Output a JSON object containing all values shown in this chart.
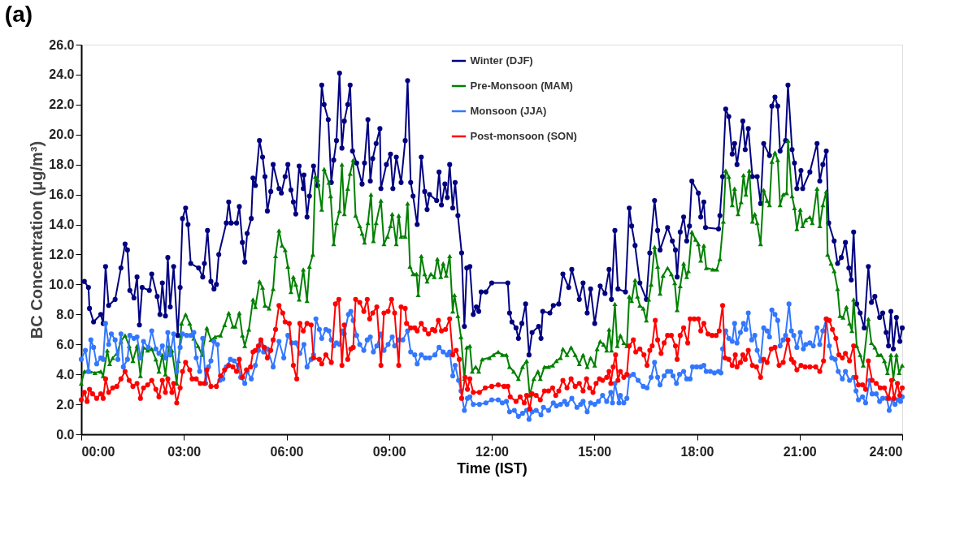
{
  "chart_data": {
    "type": "line",
    "title": "(a)",
    "xlabel": "Time (IST)",
    "ylabel": "BC Concentration (μg/m³)",
    "xlim": [
      0,
      24
    ],
    "xticks": [
      {
        "value": 0,
        "label": "00:00"
      },
      {
        "value": 3,
        "label": "03:00"
      },
      {
        "value": 6,
        "label": "06:00"
      },
      {
        "value": 9,
        "label": "09:00"
      },
      {
        "value": 12,
        "label": "12:00"
      },
      {
        "value": 15,
        "label": "15:00"
      },
      {
        "value": 18,
        "label": "18:00"
      },
      {
        "value": 21,
        "label": "21:00"
      },
      {
        "value": 24,
        "label": "24:00"
      }
    ],
    "ylim": [
      0,
      26
    ],
    "yticks": [
      {
        "value": 0,
        "label": "0.0"
      },
      {
        "value": 2,
        "label": "2.0"
      },
      {
        "value": 4,
        "label": "4.0"
      },
      {
        "value": 6,
        "label": "6.0"
      },
      {
        "value": 8,
        "label": "8.0"
      },
      {
        "value": 10,
        "label": "10.0"
      },
      {
        "value": 12,
        "label": "12.0"
      },
      {
        "value": 14,
        "label": "14.0"
      },
      {
        "value": 16,
        "label": "16.0"
      },
      {
        "value": 18,
        "label": "18.0"
      },
      {
        "value": 20,
        "label": "20.0"
      },
      {
        "value": 22,
        "label": "22.0"
      },
      {
        "value": 24,
        "label": "24.0"
      },
      {
        "value": 26,
        "label": "26.0"
      }
    ],
    "grid": false,
    "legend": "top",
    "line_style": "solid",
    "series": [
      {
        "name": "Winter (DJF)",
        "color": "#000080",
        "marker": "circle",
        "x": [
          0.09,
          0.21,
          0.24,
          0.36,
          0.57,
          0.64,
          0.71,
          0.8,
          0.99,
          1.16,
          1.28,
          1.35,
          1.42,
          1.54,
          1.63,
          1.7,
          1.78,
          1.99,
          2.06,
          2.22,
          2.3,
          2.37,
          2.46,
          2.53,
          2.6,
          2.7,
          2.82,
          2.89,
          2.96,
          3.05,
          3.12,
          3.2,
          3.43,
          3.55,
          3.6,
          3.69,
          3.79,
          3.88,
          3.95,
          4.02,
          4.24,
          4.31,
          4.38,
          4.54,
          4.62,
          4.71,
          4.78,
          4.85,
          4.97,
          5.02,
          5.09,
          5.21,
          5.3,
          5.37,
          5.44,
          5.54,
          5.61,
          5.78,
          5.85,
          5.96,
          6.04,
          6.13,
          6.2,
          6.27,
          6.37,
          6.49,
          6.51,
          6.6,
          6.67,
          6.79,
          6.91,
          7.03,
          7.1,
          7.22,
          7.31,
          7.38,
          7.46,
          7.55,
          7.62,
          7.69,
          7.79,
          7.86,
          7.93,
          8.05,
          8.21,
          8.28,
          8.38,
          8.45,
          8.52,
          8.62,
          8.73,
          8.76,
          8.92,
          9.04,
          9.11,
          9.21,
          9.35,
          9.47,
          9.54,
          9.63,
          9.7,
          9.82,
          9.94,
          10.04,
          10.11,
          10.18,
          10.39,
          10.46,
          10.53,
          10.63,
          10.7,
          10.77,
          10.86,
          10.93,
          11.01,
          11.12,
          11.2,
          11.27,
          11.36,
          11.46,
          11.55,
          11.62,
          11.69,
          11.83,
          12.0,
          12.47,
          12.52,
          12.59,
          12.71,
          12.78,
          12.88,
          12.99,
          13.09,
          13.18,
          13.37,
          13.44,
          13.49,
          13.7,
          13.8,
          13.96,
          14.08,
          14.25,
          14.34,
          14.56,
          14.67,
          14.79,
          14.89,
          15.01,
          15.17,
          15.31,
          15.43,
          15.5,
          15.6,
          15.69,
          15.91,
          16.02,
          16.09,
          16.19,
          16.33,
          16.52,
          16.62,
          16.76,
          16.85,
          16.92,
          17.14,
          17.28,
          17.37,
          17.42,
          17.51,
          17.61,
          17.7,
          17.78,
          17.85,
          18.04,
          18.11,
          18.2,
          18.25,
          18.63,
          18.67,
          18.75,
          18.84,
          18.93,
          19.03,
          19.1,
          19.17,
          19.34,
          19.41,
          19.5,
          19.62,
          19.76,
          19.86,
          19.95,
          20.12,
          20.19,
          20.28,
          20.36,
          20.43,
          20.59,
          20.66,
          20.78,
          20.85,
          20.92,
          21.04,
          21.09,
          21.3,
          21.51,
          21.59,
          21.68,
          21.78,
          21.85,
          22.01,
          22.11,
          22.22,
          22.34,
          22.44,
          22.51,
          22.58,
          22.67,
          22.77,
          22.89,
          23.01,
          23.1,
          23.2,
          23.34,
          23.43,
          23.53,
          23.6,
          23.67,
          23.74,
          23.83,
          23.93,
          24.0
        ],
        "values": [
          10.2,
          9.8,
          8.4,
          7.5,
          8.0,
          7.4,
          11.2,
          8.6,
          9.0,
          11.1,
          12.7,
          12.3,
          9.6,
          9.1,
          10.5,
          7.3,
          9.8,
          9.6,
          10.7,
          9.2,
          8.0,
          10.1,
          7.9,
          11.8,
          8.5,
          11.2,
          6.6,
          9.8,
          14.4,
          15.1,
          14.0,
          11.4,
          11.1,
          10.5,
          11.4,
          13.6,
          10.2,
          9.7,
          10.0,
          12.0,
          14.1,
          15.5,
          14.1,
          14.1,
          15.2,
          12.8,
          11.5,
          13.4,
          14.4,
          17.1,
          16.6,
          19.6,
          18.5,
          17.2,
          14.9,
          16.2,
          18.0,
          16.4,
          16.1,
          17.2,
          18.0,
          16.3,
          15.5,
          14.7,
          17.9,
          16.4,
          17.3,
          14.5,
          15.9,
          17.9,
          16.6,
          23.3,
          22.0,
          21.0,
          16.8,
          18.3,
          19.6,
          24.1,
          19.1,
          20.9,
          22.0,
          23.3,
          18.9,
          18.1,
          16.7,
          18.1,
          21.0,
          16.9,
          18.4,
          19.4,
          20.4,
          16.4,
          18.0,
          18.7,
          16.4,
          18.5,
          16.8,
          19.6,
          23.6,
          16.8,
          15.9,
          14.0,
          18.5,
          16.2,
          15.0,
          16.0,
          15.6,
          17.5,
          15.3,
          16.7,
          15.8,
          18.0,
          15.1,
          16.8,
          14.6,
          12.1,
          7.2,
          11.1,
          11.2,
          8.0,
          8.5,
          8.2,
          9.5,
          9.5,
          10.1,
          10.1,
          8.1,
          7.5,
          7.1,
          6.4,
          7.4,
          8.7,
          5.3,
          6.8,
          7.2,
          6.4,
          8.2,
          8.1,
          8.6,
          8.7,
          10.7,
          9.8,
          11.0,
          9.0,
          10.1,
          8.1,
          9.7,
          7.4,
          9.9,
          9.4,
          11.0,
          9.0,
          13.6,
          9.7,
          9.5,
          15.1,
          13.9,
          12.6,
          10.1,
          9.0,
          12.1,
          15.6,
          13.6,
          12.3,
          13.8,
          12.9,
          12.3,
          10.5,
          13.5,
          14.5,
          12.9,
          13.9,
          16.9,
          16.1,
          14.5,
          15.5,
          13.8,
          13.7,
          14.6,
          17.2,
          21.7,
          21.2,
          18.7,
          19.4,
          18.0,
          20.9,
          19.0,
          20.4,
          17.2,
          17.2,
          15.4,
          19.4,
          18.6,
          21.9,
          22.5,
          21.9,
          18.9,
          19.6,
          23.3,
          19.0,
          18.1,
          16.4,
          17.6,
          16.4,
          17.5,
          19.4,
          16.9,
          18.0,
          18.9,
          14.1,
          12.9,
          11.4,
          11.8,
          12.8,
          11.1,
          10.3,
          13.5,
          8.7,
          8.1,
          7.1,
          11.2,
          8.8,
          9.2,
          7.8,
          8.1,
          6.8,
          5.9,
          8.2,
          5.7,
          7.8,
          6.2,
          7.1
        ]
      },
      {
        "name": "Pre-Monsoon (MAM)",
        "color": "#008000",
        "marker": "triangle",
        "x": [
          0.0,
          0.09,
          0.24,
          0.4,
          0.57,
          0.64,
          0.76,
          0.83,
          0.92,
          1.04,
          1.16,
          1.28,
          1.4,
          1.51,
          1.63,
          1.73,
          1.82,
          1.94,
          2.06,
          2.18,
          2.27,
          2.37,
          2.46,
          2.56,
          2.65,
          2.79,
          2.84,
          2.93,
          3.05,
          3.17,
          3.29,
          3.41,
          3.53,
          3.67,
          3.79,
          3.91,
          4.07,
          4.19,
          4.31,
          4.43,
          4.5,
          4.62,
          4.71,
          4.78,
          4.9,
          5.02,
          5.09,
          5.21,
          5.3,
          5.37,
          5.49,
          5.61,
          5.68,
          5.78,
          5.87,
          5.96,
          6.04,
          6.13,
          6.2,
          6.27,
          6.37,
          6.49,
          6.6,
          6.67,
          6.77,
          6.84,
          6.91,
          7.03,
          7.1,
          7.24,
          7.29,
          7.38,
          7.46,
          7.55,
          7.62,
          7.69,
          7.79,
          7.86,
          7.95,
          8.02,
          8.14,
          8.21,
          8.28,
          8.38,
          8.47,
          8.54,
          8.62,
          8.76,
          8.85,
          8.95,
          9.04,
          9.09,
          9.21,
          9.28,
          9.35,
          9.47,
          9.54,
          9.61,
          9.7,
          9.8,
          9.85,
          9.94,
          10.04,
          10.11,
          10.22,
          10.32,
          10.41,
          10.51,
          10.58,
          10.67,
          10.77,
          10.86,
          10.91,
          11.01,
          11.1,
          11.2,
          11.27,
          11.36,
          11.43,
          11.53,
          11.62,
          11.72,
          11.93,
          12.05,
          12.19,
          12.31,
          12.43,
          12.52,
          12.64,
          12.78,
          12.9,
          13.02,
          13.11,
          13.23,
          13.35,
          13.42,
          13.54,
          13.66,
          13.78,
          13.89,
          14.01,
          14.08,
          14.2,
          14.32,
          14.44,
          14.56,
          14.67,
          14.79,
          14.89,
          15.01,
          15.08,
          15.17,
          15.27,
          15.36,
          15.43,
          15.5,
          15.6,
          15.67,
          15.76,
          15.86,
          15.95,
          16.02,
          16.09,
          16.19,
          16.26,
          16.33,
          16.43,
          16.52,
          16.59,
          16.66,
          16.76,
          16.85,
          16.92,
          17.01,
          17.14,
          17.25,
          17.35,
          17.42,
          17.51,
          17.61,
          17.7,
          17.75,
          17.85,
          17.96,
          18.04,
          18.11,
          18.2,
          18.27,
          18.46,
          18.58,
          18.67,
          18.77,
          18.84,
          18.93,
          19.03,
          19.1,
          19.2,
          19.29,
          19.36,
          19.43,
          19.53,
          19.62,
          19.69,
          19.76,
          19.86,
          19.95,
          20.05,
          20.12,
          20.19,
          20.28,
          20.36,
          20.43,
          20.52,
          20.62,
          20.66,
          20.78,
          20.85,
          20.92,
          21.02,
          21.09,
          21.18,
          21.3,
          21.37,
          21.51,
          21.59,
          21.68,
          21.78,
          21.82,
          21.92,
          22.01,
          22.11,
          22.18,
          22.27,
          22.37,
          22.46,
          22.53,
          22.58,
          22.67,
          22.77,
          22.86,
          23.01,
          23.1,
          23.2,
          23.29,
          23.38,
          23.48,
          23.57,
          23.67,
          23.74,
          23.83,
          23.91,
          24.0
        ],
        "values": [
          3.4,
          4.2,
          4.2,
          4.1,
          4.2,
          3.9,
          5.6,
          4.7,
          5.1,
          5.4,
          6.2,
          6.6,
          5.9,
          4.9,
          5.9,
          3.9,
          5.8,
          5.6,
          5.7,
          5.0,
          4.2,
          5.3,
          4.0,
          5.9,
          5.6,
          3.4,
          4.9,
          7.4,
          8.0,
          7.4,
          6.4,
          5.9,
          5.3,
          7.1,
          6.3,
          6.5,
          6.6,
          7.3,
          8.1,
          7.2,
          7.2,
          8.1,
          6.6,
          5.9,
          7.0,
          9.0,
          8.5,
          10.2,
          9.8,
          8.6,
          8.4,
          9.7,
          11.9,
          13.6,
          12.6,
          12.3,
          11.2,
          9.5,
          10.5,
          10.0,
          9.0,
          11.0,
          8.9,
          11.2,
          12.0,
          17.2,
          17.0,
          15.0,
          17.7,
          16.8,
          15.9,
          12.7,
          14.1,
          14.9,
          18.0,
          14.7,
          16.4,
          17.4,
          18.3,
          14.6,
          13.9,
          13.4,
          12.8,
          14.1,
          16.0,
          12.9,
          14.1,
          15.6,
          12.7,
          13.2,
          13.9,
          14.7,
          12.7,
          14.6,
          13.2,
          13.2,
          15.4,
          11.2,
          10.7,
          10.7,
          9.3,
          11.9,
          10.7,
          10.2,
          10.7,
          10.5,
          11.7,
          10.5,
          11.4,
          10.6,
          11.9,
          8.2,
          9.3,
          7.9,
          6.5,
          3.7,
          5.8,
          5.9,
          4.2,
          4.5,
          4.2,
          5.0,
          5.1,
          5.3,
          5.5,
          5.3,
          5.3,
          4.5,
          4.2,
          3.7,
          4.5,
          4.9,
          2.6,
          3.7,
          4.2,
          3.7,
          4.5,
          4.5,
          4.6,
          4.9,
          5.1,
          5.7,
          5.3,
          5.8,
          5.3,
          4.7,
          5.3,
          4.5,
          5.1,
          4.6,
          5.7,
          6.2,
          6.0,
          5.6,
          7.0,
          5.6,
          8.7,
          5.9,
          6.6,
          6.1,
          5.9,
          9.2,
          8.9,
          10.3,
          9.2,
          8.6,
          8.4,
          7.6,
          9.0,
          10.0,
          12.5,
          11.2,
          9.4,
          10.6,
          11.1,
          10.7,
          10.1,
          8.3,
          9.9,
          11.4,
          10.5,
          10.9,
          13.5,
          13.0,
          12.7,
          11.6,
          12.6,
          11.1,
          11.0,
          11.0,
          11.7,
          14.2,
          17.6,
          17.2,
          15.3,
          16.4,
          14.7,
          15.5,
          17.3,
          16.0,
          17.6,
          14.2,
          14.7,
          14.1,
          12.7,
          16.3,
          15.6,
          15.3,
          18.2,
          18.8,
          18.3,
          15.3,
          16.0,
          16.1,
          19.6,
          15.9,
          15.1,
          13.7,
          15.0,
          13.9,
          14.3,
          14.5,
          14.1,
          16.4,
          13.9,
          15.3,
          16.2,
          12.0,
          11.4,
          10.9,
          9.7,
          7.9,
          7.8,
          8.5,
          7.4,
          6.9,
          9.0,
          5.9,
          5.3,
          4.6,
          7.7,
          6.1,
          5.8,
          5.3,
          5.3,
          4.9,
          4.1,
          5.3,
          3.7,
          5.3,
          4.1,
          4.6
        ]
      },
      {
        "name": "Monsoon (JJA)",
        "color": "#3377ff",
        "marker": "circle",
        "x": [
          0.0,
          0.12,
          0.21,
          0.28,
          0.36,
          0.45,
          0.57,
          0.64,
          0.71,
          0.8,
          0.88,
          0.99,
          1.07,
          1.16,
          1.23,
          1.35,
          1.42,
          1.54,
          1.63,
          1.73,
          1.82,
          1.96,
          2.06,
          2.18,
          2.27,
          2.37,
          2.46,
          2.53,
          2.6,
          2.7,
          2.79,
          2.89,
          2.96,
          3.08,
          3.2,
          3.29,
          3.36,
          3.46,
          3.55,
          3.64,
          3.72,
          3.79,
          3.88,
          3.98,
          4.05,
          4.14,
          4.24,
          4.36,
          4.47,
          4.59,
          4.66,
          4.78,
          4.85,
          4.97,
          5.09,
          5.18,
          5.25,
          5.33,
          5.44,
          5.61,
          5.78,
          5.92,
          6.04,
          6.15,
          6.27,
          6.39,
          6.51,
          6.6,
          6.72,
          6.79,
          6.86,
          6.96,
          7.03,
          7.15,
          7.24,
          7.31,
          7.38,
          7.46,
          7.55,
          7.62,
          7.69,
          7.81,
          7.88,
          7.95,
          8.05,
          8.14,
          8.26,
          8.36,
          8.45,
          8.54,
          8.64,
          8.76,
          8.85,
          8.97,
          9.09,
          9.16,
          9.28,
          9.4,
          9.54,
          9.63,
          9.75,
          9.82,
          9.94,
          10.06,
          10.18,
          10.34,
          10.46,
          10.58,
          10.7,
          10.77,
          10.86,
          10.93,
          11.03,
          11.1,
          11.2,
          11.29,
          11.36,
          11.46,
          11.64,
          11.83,
          12.0,
          12.19,
          12.31,
          12.43,
          12.52,
          12.66,
          12.78,
          12.9,
          13.02,
          13.09,
          13.18,
          13.3,
          13.44,
          13.51,
          13.66,
          13.8,
          13.89,
          14.01,
          14.13,
          14.2,
          14.34,
          14.49,
          14.6,
          14.67,
          14.79,
          14.89,
          15.01,
          15.12,
          15.24,
          15.36,
          15.48,
          15.53,
          15.6,
          15.72,
          15.76,
          15.86,
          15.95,
          16.02,
          16.14,
          16.28,
          16.43,
          16.54,
          16.66,
          16.76,
          16.85,
          16.92,
          17.04,
          17.14,
          17.23,
          17.3,
          17.4,
          17.49,
          17.61,
          17.7,
          17.8,
          17.87,
          17.99,
          18.11,
          18.2,
          18.27,
          18.39,
          18.51,
          18.63,
          18.7,
          18.75,
          18.84,
          18.93,
          19.03,
          19.1,
          19.17,
          19.27,
          19.36,
          19.43,
          19.5,
          19.6,
          19.69,
          19.76,
          19.86,
          19.95,
          20.05,
          20.12,
          20.19,
          20.28,
          20.36,
          20.43,
          20.52,
          20.59,
          20.69,
          20.76,
          20.83,
          20.92,
          21.02,
          21.11,
          21.18,
          21.3,
          21.4,
          21.51,
          21.59,
          21.68,
          21.78,
          21.87,
          21.94,
          22.04,
          22.13,
          22.25,
          22.34,
          22.46,
          22.58,
          22.65,
          22.72,
          22.84,
          22.93,
          23.05,
          23.12,
          23.24,
          23.34,
          23.43,
          23.55,
          23.62,
          23.72,
          23.79,
          23.88,
          23.95,
          24.0
        ],
        "values": [
          5.0,
          5.6,
          4.2,
          6.3,
          5.8,
          4.7,
          5.1,
          5.0,
          7.4,
          6.0,
          6.7,
          6.3,
          5.0,
          6.7,
          4.5,
          5.0,
          6.6,
          6.4,
          6.5,
          5.1,
          6.2,
          5.8,
          6.9,
          5.7,
          5.4,
          5.9,
          5.1,
          6.8,
          5.3,
          6.7,
          4.2,
          5.8,
          6.7,
          6.6,
          6.6,
          6.8,
          5.1,
          4.2,
          6.4,
          3.4,
          4.5,
          4.9,
          6.2,
          6.0,
          3.6,
          3.7,
          4.5,
          5.0,
          4.9,
          4.6,
          3.8,
          3.4,
          4.2,
          3.7,
          4.6,
          5.6,
          6.1,
          5.5,
          5.7,
          4.5,
          6.2,
          5.1,
          6.6,
          6.1,
          6.1,
          5.4,
          6.0,
          4.5,
          5.0,
          5.3,
          7.7,
          7.0,
          6.4,
          7.0,
          6.9,
          6.3,
          5.9,
          6.1,
          6.0,
          6.9,
          6.7,
          8.0,
          8.2,
          7.6,
          6.6,
          6.0,
          5.6,
          6.3,
          6.5,
          5.5,
          5.9,
          6.7,
          5.6,
          6.0,
          6.5,
          5.9,
          6.3,
          6.3,
          6.9,
          5.5,
          5.3,
          4.7,
          5.3,
          5.1,
          5.1,
          5.3,
          5.8,
          5.5,
          5.3,
          5.5,
          3.9,
          4.6,
          3.6,
          2.9,
          1.6,
          2.4,
          2.5,
          2.0,
          2.0,
          2.1,
          2.3,
          2.3,
          2.1,
          2.2,
          1.5,
          1.6,
          1.2,
          1.4,
          1.6,
          1.0,
          1.5,
          1.6,
          1.3,
          1.8,
          1.6,
          2.1,
          1.9,
          2.0,
          2.2,
          2.0,
          2.4,
          1.8,
          2.0,
          2.2,
          1.5,
          2.1,
          2.0,
          2.2,
          2.6,
          2.2,
          2.8,
          2.1,
          3.4,
          2.1,
          2.6,
          2.1,
          2.4,
          3.9,
          4.0,
          3.6,
          3.2,
          3.1,
          3.8,
          4.8,
          3.8,
          3.3,
          3.9,
          4.2,
          4.2,
          3.9,
          3.4,
          4.0,
          4.2,
          3.7,
          3.7,
          4.5,
          4.5,
          4.5,
          4.6,
          4.2,
          4.2,
          4.1,
          4.2,
          4.1,
          5.7,
          6.9,
          6.4,
          6.2,
          7.4,
          6.1,
          6.8,
          7.4,
          7.0,
          8.1,
          6.3,
          6.6,
          5.6,
          4.9,
          7.1,
          6.9,
          6.5,
          8.3,
          8.0,
          7.6,
          5.9,
          6.3,
          6.6,
          8.7,
          6.9,
          6.6,
          5.8,
          6.8,
          5.7,
          6.0,
          6.1,
          5.9,
          7.1,
          6.0,
          6.9,
          7.7,
          5.9,
          5.1,
          5.0,
          4.2,
          3.7,
          4.2,
          3.6,
          3.8,
          2.9,
          2.3,
          2.5,
          2.1,
          3.6,
          2.7,
          2.7,
          2.2,
          2.4,
          2.4,
          1.6,
          2.3,
          2.0,
          2.3,
          2.2,
          2.5
        ]
      },
      {
        "name": "Post-monsoon (SON)",
        "color": "#ff0000",
        "marker": "circle",
        "x": [
          0.0,
          0.09,
          0.17,
          0.24,
          0.33,
          0.45,
          0.57,
          0.64,
          0.71,
          0.8,
          0.92,
          1.04,
          1.16,
          1.28,
          1.4,
          1.51,
          1.63,
          1.73,
          1.82,
          1.94,
          2.06,
          2.18,
          2.27,
          2.37,
          2.46,
          2.53,
          2.65,
          2.7,
          2.79,
          2.89,
          2.96,
          3.05,
          3.17,
          3.24,
          3.36,
          3.48,
          3.6,
          3.67,
          3.79,
          3.95,
          4.07,
          4.19,
          4.31,
          4.43,
          4.54,
          4.62,
          4.71,
          4.83,
          4.95,
          5.02,
          5.09,
          5.18,
          5.25,
          5.35,
          5.44,
          5.54,
          5.61,
          5.68,
          5.78,
          5.89,
          5.96,
          6.08,
          6.2,
          6.3,
          6.39,
          6.49,
          6.6,
          6.72,
          6.79,
          6.96,
          7.03,
          7.15,
          7.31,
          7.43,
          7.53,
          7.62,
          7.69,
          7.79,
          7.88,
          7.95,
          8.02,
          8.14,
          8.26,
          8.36,
          8.43,
          8.52,
          8.64,
          8.76,
          8.85,
          8.97,
          9.07,
          9.16,
          9.28,
          9.35,
          9.47,
          9.51,
          9.63,
          9.75,
          9.82,
          9.94,
          10.04,
          10.15,
          10.27,
          10.34,
          10.44,
          10.53,
          10.65,
          10.77,
          10.86,
          10.96,
          11.05,
          11.12,
          11.22,
          11.29,
          11.36,
          11.46,
          11.64,
          11.81,
          12.0,
          12.19,
          12.36,
          12.47,
          12.54,
          12.71,
          12.83,
          12.95,
          13.02,
          13.11,
          13.18,
          13.3,
          13.42,
          13.54,
          13.66,
          13.78,
          13.87,
          13.96,
          14.08,
          14.2,
          14.32,
          14.44,
          14.56,
          14.67,
          14.77,
          14.86,
          14.96,
          15.05,
          15.15,
          15.24,
          15.36,
          15.43,
          15.48,
          15.55,
          15.62,
          15.69,
          15.76,
          15.86,
          15.95,
          16.02,
          16.14,
          16.21,
          16.33,
          16.45,
          16.54,
          16.62,
          16.69,
          16.78,
          16.85,
          16.95,
          17.04,
          17.14,
          17.25,
          17.37,
          17.42,
          17.51,
          17.61,
          17.73,
          17.8,
          17.92,
          18.04,
          18.11,
          18.2,
          18.32,
          18.44,
          18.56,
          18.65,
          18.75,
          18.82,
          18.93,
          19.03,
          19.12,
          19.17,
          19.27,
          19.34,
          19.41,
          19.5,
          19.62,
          19.74,
          19.86,
          19.95,
          20.05,
          20.17,
          20.28,
          20.4,
          20.52,
          20.66,
          20.76,
          20.83,
          20.92,
          21.04,
          21.16,
          21.3,
          21.47,
          21.59,
          21.7,
          21.78,
          21.87,
          21.96,
          22.06,
          22.15,
          22.25,
          22.34,
          22.46,
          22.58,
          22.65,
          22.72,
          22.84,
          22.93,
          23.01,
          23.12,
          23.24,
          23.36,
          23.48,
          23.6,
          23.69,
          23.76,
          23.86,
          23.93,
          24.0
        ],
        "values": [
          2.3,
          2.8,
          2.2,
          3.0,
          2.7,
          2.4,
          2.7,
          2.4,
          3.7,
          2.8,
          3.1,
          3.2,
          3.7,
          4.2,
          3.6,
          3.2,
          3.4,
          2.4,
          3.1,
          3.3,
          3.6,
          3.0,
          2.5,
          3.6,
          2.8,
          3.7,
          2.8,
          3.4,
          2.1,
          3.1,
          4.2,
          4.8,
          4.3,
          3.7,
          3.7,
          3.4,
          3.4,
          4.3,
          3.2,
          3.2,
          3.9,
          4.3,
          4.6,
          4.5,
          4.2,
          5.0,
          3.8,
          4.3,
          4.5,
          5.5,
          5.6,
          5.9,
          6.3,
          5.8,
          5.1,
          5.6,
          6.3,
          7.0,
          8.6,
          8.1,
          7.5,
          7.4,
          4.6,
          3.7,
          7.4,
          6.9,
          7.4,
          7.3,
          5.1,
          5.0,
          4.7,
          5.3,
          4.8,
          8.7,
          9.0,
          4.6,
          7.3,
          5.0,
          5.7,
          5.8,
          9.0,
          8.8,
          8.2,
          9.0,
          7.7,
          8.1,
          8.5,
          4.6,
          8.1,
          8.2,
          9.0,
          8.1,
          4.6,
          8.5,
          8.4,
          7.4,
          7.1,
          7.1,
          6.9,
          7.4,
          7.0,
          6.7,
          7.0,
          6.9,
          7.6,
          6.9,
          7.0,
          7.7,
          5.3,
          5.6,
          5.0,
          2.4,
          3.8,
          3.0,
          3.7,
          2.8,
          2.8,
          3.1,
          3.2,
          3.3,
          3.2,
          3.2,
          2.5,
          2.2,
          2.5,
          2.1,
          2.6,
          1.7,
          2.7,
          2.6,
          2.3,
          2.9,
          2.9,
          3.1,
          2.6,
          2.9,
          3.6,
          3.1,
          3.7,
          3.2,
          3.4,
          2.9,
          3.7,
          3.1,
          2.8,
          3.4,
          3.7,
          3.6,
          3.8,
          4.2,
          3.4,
          4.5,
          5.3,
          3.6,
          4.2,
          3.8,
          4.0,
          5.9,
          6.3,
          5.5,
          5.7,
          5.3,
          4.6,
          5.6,
          5.9,
          7.6,
          6.3,
          5.4,
          6.1,
          6.6,
          6.6,
          5.9,
          5.0,
          6.6,
          7.1,
          6.1,
          7.7,
          7.7,
          7.7,
          6.9,
          7.4,
          6.7,
          6.6,
          6.6,
          6.9,
          8.6,
          5.1,
          5.0,
          4.6,
          5.3,
          4.5,
          4.8,
          5.3,
          5.0,
          5.6,
          4.6,
          4.5,
          3.8,
          5.0,
          4.8,
          5.7,
          5.8,
          4.6,
          4.8,
          6.3,
          5.0,
          4.8,
          4.3,
          4.6,
          4.5,
          4.5,
          4.5,
          4.2,
          4.9,
          7.7,
          7.6,
          7.0,
          6.4,
          5.3,
          5.1,
          5.4,
          4.9,
          5.9,
          3.8,
          3.3,
          3.3,
          3.0,
          4.9,
          3.6,
          3.4,
          3.1,
          3.1,
          2.4,
          3.6,
          2.4,
          3.4,
          2.6,
          3.1
        ]
      }
    ]
  }
}
